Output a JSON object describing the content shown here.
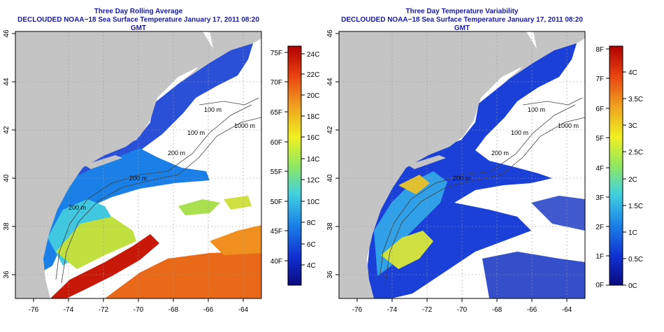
{
  "left_panel": {
    "title_line1": "Three Day Rolling Average",
    "title_line2": "DECLOUDED NOAA−18 Sea Surface Temperature January 17, 2011 08:20 GMT",
    "lon_ticks": [
      "-76",
      "-74",
      "-72",
      "-70",
      "-68",
      "-66",
      "-64"
    ],
    "lat_ticks": [
      "36",
      "38",
      "40",
      "42",
      "44",
      "46"
    ],
    "contour_labels": [
      "100 m",
      "1000 m",
      "100 m",
      "200 m",
      "200 m",
      "200 m"
    ],
    "colorbar_f": [
      "75F",
      "70F",
      "65F",
      "60F",
      "55F",
      "50F",
      "45F",
      "40F"
    ],
    "colorbar_c": [
      "24C",
      "22C",
      "20C",
      "18C",
      "16C",
      "14C",
      "12C",
      "10C",
      "8C",
      "6C",
      "4C"
    ]
  },
  "right_panel": {
    "title_line1": "Three Day Temperature Variability",
    "title_line2": "DECLOUDED NOAA−18 Sea Surface Temperature January 17, 2011 08:20 GMT",
    "lon_ticks": [
      "-76",
      "-74",
      "-72",
      "-70",
      "-68",
      "-66",
      "-64"
    ],
    "lat_ticks": [
      "36",
      "38",
      "40",
      "42",
      "44",
      "46"
    ],
    "contour_labels": [
      "100 m",
      "1000 m",
      "100 m",
      "200 m",
      "200 m"
    ],
    "colorbar_f": [
      "8F",
      "7F",
      "6F",
      "5F",
      "4F",
      "3F",
      "2F",
      "1F",
      "0F"
    ],
    "colorbar_c": [
      "4C",
      "3.5C",
      "3C",
      "2.5C",
      "2C",
      "1.5C",
      "1C",
      "0.5C",
      "0C"
    ]
  },
  "colors": {
    "land": "#c4c4c4",
    "title": "#1a1aa0",
    "colormap": [
      "#0a0a80",
      "#1030d0",
      "#1a80e8",
      "#40d0e0",
      "#90e860",
      "#f0f020",
      "#f0a020",
      "#e84010",
      "#b00000"
    ]
  }
}
